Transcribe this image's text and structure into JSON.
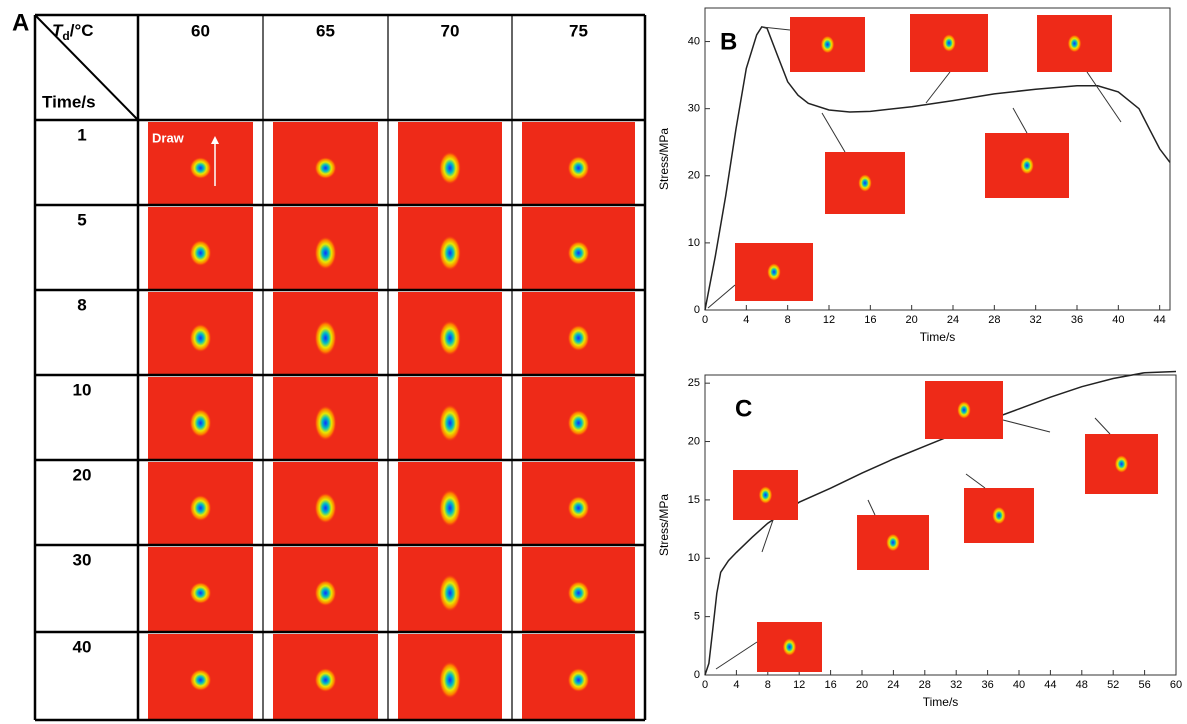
{
  "figure_a": {
    "panel_label": "A",
    "corner": {
      "symbol": "T",
      "subscript": "d",
      "unit": "/°C",
      "row_title": "Time/s"
    },
    "columns": [
      "60",
      "65",
      "70",
      "75"
    ],
    "rows": [
      "1",
      "5",
      "8",
      "10",
      "20",
      "30",
      "40"
    ],
    "annotation": "Draw"
  },
  "chart_data": [
    {
      "type": "line",
      "panel_label": "B",
      "x_label": "Time/s",
      "y_label": "Stress/MPa",
      "x": [
        0,
        1,
        2,
        3,
        4,
        5,
        5.5,
        6,
        7,
        8,
        9,
        10,
        12,
        14,
        16,
        20,
        24,
        28,
        32,
        36,
        38,
        40,
        42,
        43,
        44,
        45
      ],
      "series": [
        {
          "color": "#222222",
          "values": [
            0,
            8,
            17,
            27,
            36,
            41,
            42.2,
            42,
            38,
            34,
            32,
            30.8,
            29.8,
            29.5,
            29.6,
            30.3,
            31.2,
            32.2,
            32.9,
            33.4,
            33.4,
            32.5,
            30,
            27,
            24,
            22
          ]
        }
      ],
      "xlim": [
        0,
        45
      ],
      "ylim": [
        0,
        45
      ],
      "xticks": [
        0,
        4,
        8,
        12,
        16,
        20,
        24,
        28,
        32,
        36,
        40,
        44
      ],
      "yticks": [
        0,
        10,
        20,
        30,
        40
      ]
    },
    {
      "type": "line",
      "panel_label": "C",
      "x_label": "Time/s",
      "y_label": "Stress/MPa",
      "x": [
        0,
        0.5,
        1,
        1.5,
        2,
        3,
        4,
        6,
        8,
        12,
        16,
        20,
        24,
        28,
        32,
        36,
        40,
        44,
        48,
        52,
        56,
        60
      ],
      "series": [
        {
          "color": "#222222",
          "values": [
            0,
            1,
            4,
            7,
            8.8,
            9.8,
            10.5,
            11.8,
            13,
            14.8,
            16,
            17.3,
            18.5,
            19.6,
            20.7,
            21.8,
            22.8,
            23.8,
            24.7,
            25.4,
            25.9,
            26
          ]
        }
      ],
      "xlim": [
        0,
        60
      ],
      "ylim": [
        0,
        25.7
      ],
      "xticks": [
        0,
        4,
        8,
        12,
        16,
        20,
        24,
        28,
        32,
        36,
        40,
        44,
        48,
        52,
        56,
        60
      ],
      "yticks": [
        0,
        5,
        10,
        15,
        20,
        25
      ]
    }
  ]
}
